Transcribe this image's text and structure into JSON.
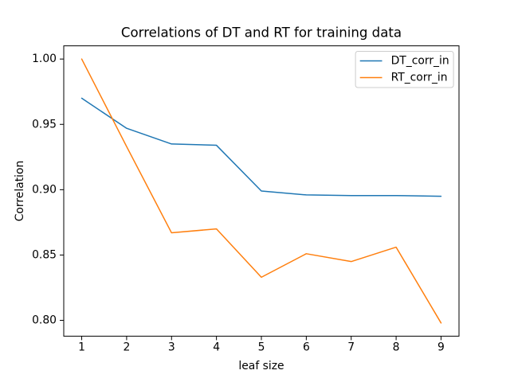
{
  "figure": {
    "title": "Correlations of DT and RT for training data",
    "xlabel": "leaf size",
    "ylabel": "Correlation"
  },
  "chart_data": {
    "type": "line",
    "title": "Correlations of DT and RT for training data",
    "xlabel": "leaf size",
    "ylabel": "Correlation",
    "x": [
      1,
      2,
      3,
      4,
      5,
      6,
      7,
      8,
      9
    ],
    "series": [
      {
        "name": "DT_corr_in",
        "color": "#1f77b4",
        "values": [
          0.97,
          0.947,
          0.935,
          0.934,
          0.899,
          0.896,
          0.8955,
          0.8955,
          0.895
        ]
      },
      {
        "name": "RT_corr_in",
        "color": "#ff7f0e",
        "values": [
          1.0,
          0.933,
          0.867,
          0.87,
          0.833,
          0.851,
          0.845,
          0.856,
          0.798
        ]
      }
    ],
    "xticks": [
      1,
      2,
      3,
      4,
      5,
      6,
      7,
      8,
      9
    ],
    "xtick_labels": [
      "1",
      "2",
      "3",
      "4",
      "5",
      "6",
      "7",
      "8",
      "9"
    ],
    "yticks": [
      0.8,
      0.85,
      0.9,
      0.95,
      1.0
    ],
    "ytick_labels": [
      "0.80",
      "0.85",
      "0.90",
      "0.95",
      "1.00"
    ],
    "xlim": [
      0.6,
      9.4
    ],
    "ylim": [
      0.7879,
      1.0101
    ],
    "grid": false,
    "legend_position": "upper right",
    "legend": [
      "DT_corr_in",
      "RT_corr_in"
    ],
    "axis_color": "#000000",
    "background_color": "#ffffff"
  }
}
